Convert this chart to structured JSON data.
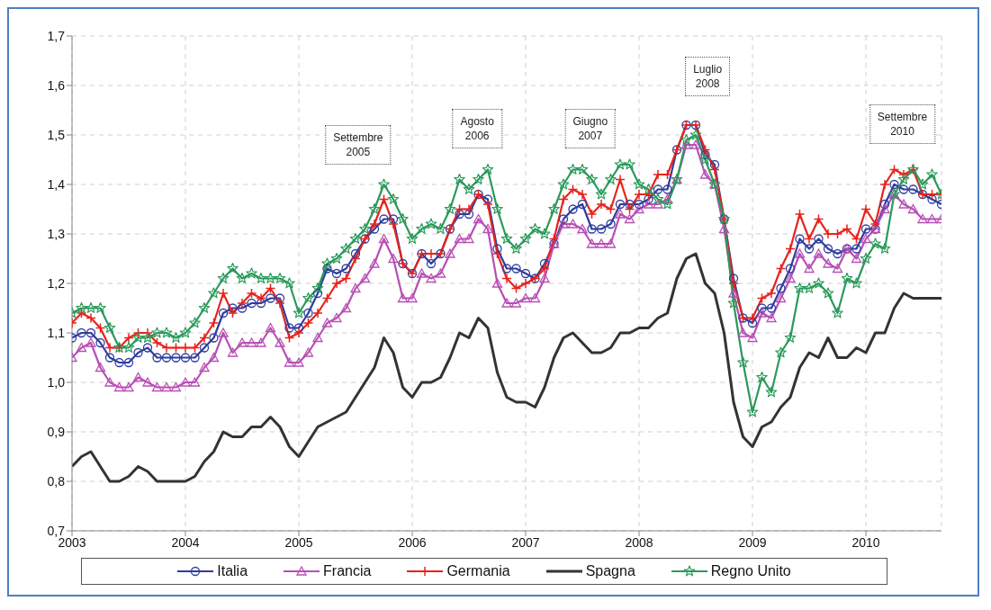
{
  "chart_data": {
    "type": "line",
    "x": [
      "2003-01",
      "2003-02",
      "2003-03",
      "2003-04",
      "2003-05",
      "2003-06",
      "2003-07",
      "2003-08",
      "2003-09",
      "2003-10",
      "2003-11",
      "2003-12",
      "2004-01",
      "2004-02",
      "2004-03",
      "2004-04",
      "2004-05",
      "2004-06",
      "2004-07",
      "2004-08",
      "2004-09",
      "2004-10",
      "2004-11",
      "2004-12",
      "2005-01",
      "2005-02",
      "2005-03",
      "2005-04",
      "2005-05",
      "2005-06",
      "2005-07",
      "2005-08",
      "2005-09",
      "2005-10",
      "2005-11",
      "2005-12",
      "2006-01",
      "2006-02",
      "2006-03",
      "2006-04",
      "2006-05",
      "2006-06",
      "2006-07",
      "2006-08",
      "2006-09",
      "2006-10",
      "2006-11",
      "2006-12",
      "2007-01",
      "2007-02",
      "2007-03",
      "2007-04",
      "2007-05",
      "2007-06",
      "2007-07",
      "2007-08",
      "2007-09",
      "2007-10",
      "2007-11",
      "2007-12",
      "2008-01",
      "2008-02",
      "2008-03",
      "2008-04",
      "2008-05",
      "2008-06",
      "2008-07",
      "2008-08",
      "2008-09",
      "2008-10",
      "2008-11",
      "2008-12",
      "2009-01",
      "2009-02",
      "2009-03",
      "2009-04",
      "2009-05",
      "2009-06",
      "2009-07",
      "2009-08",
      "2009-09",
      "2009-10",
      "2009-11",
      "2009-12",
      "2010-01",
      "2010-02",
      "2010-03",
      "2010-04",
      "2010-05",
      "2010-06",
      "2010-07",
      "2010-08",
      "2010-09"
    ],
    "series": [
      {
        "name": "Italia",
        "color": "#2e3d9e",
        "marker": "circle",
        "values": [
          1.09,
          1.1,
          1.1,
          1.08,
          1.05,
          1.04,
          1.04,
          1.06,
          1.07,
          1.05,
          1.05,
          1.05,
          1.05,
          1.05,
          1.07,
          1.09,
          1.14,
          1.15,
          1.15,
          1.16,
          1.16,
          1.17,
          1.17,
          1.11,
          1.11,
          1.14,
          1.18,
          1.23,
          1.22,
          1.23,
          1.26,
          1.29,
          1.31,
          1.33,
          1.33,
          1.24,
          1.22,
          1.26,
          1.24,
          1.26,
          1.31,
          1.34,
          1.34,
          1.38,
          1.37,
          1.27,
          1.23,
          1.23,
          1.22,
          1.21,
          1.24,
          1.28,
          1.33,
          1.35,
          1.36,
          1.31,
          1.31,
          1.32,
          1.36,
          1.36,
          1.36,
          1.37,
          1.39,
          1.39,
          1.47,
          1.52,
          1.52,
          1.46,
          1.44,
          1.33,
          1.21,
          1.13,
          1.12,
          1.15,
          1.15,
          1.19,
          1.23,
          1.29,
          1.27,
          1.29,
          1.27,
          1.26,
          1.27,
          1.27,
          1.31,
          1.31,
          1.36,
          1.4,
          1.39,
          1.39,
          1.38,
          1.37,
          1.36
        ]
      },
      {
        "name": "Francia",
        "color": "#b84fb5",
        "marker": "triangle",
        "values": [
          1.05,
          1.07,
          1.08,
          1.03,
          1.0,
          0.99,
          0.99,
          1.01,
          1.0,
          0.99,
          0.99,
          0.99,
          1.0,
          1.0,
          1.03,
          1.05,
          1.1,
          1.06,
          1.08,
          1.08,
          1.08,
          1.11,
          1.08,
          1.04,
          1.04,
          1.06,
          1.09,
          1.12,
          1.13,
          1.15,
          1.19,
          1.21,
          1.24,
          1.29,
          1.25,
          1.17,
          1.17,
          1.22,
          1.21,
          1.22,
          1.26,
          1.29,
          1.29,
          1.33,
          1.31,
          1.2,
          1.16,
          1.16,
          1.17,
          1.17,
          1.21,
          1.28,
          1.32,
          1.32,
          1.31,
          1.28,
          1.28,
          1.28,
          1.34,
          1.33,
          1.35,
          1.36,
          1.36,
          1.37,
          1.41,
          1.48,
          1.48,
          1.42,
          1.4,
          1.31,
          1.18,
          1.1,
          1.09,
          1.14,
          1.13,
          1.17,
          1.21,
          1.26,
          1.23,
          1.26,
          1.24,
          1.23,
          1.27,
          1.25,
          1.29,
          1.31,
          1.35,
          1.38,
          1.36,
          1.35,
          1.33,
          1.33,
          1.33
        ]
      },
      {
        "name": "Germania",
        "color": "#e8231c",
        "marker": "cross",
        "values": [
          1.12,
          1.14,
          1.13,
          1.11,
          1.07,
          1.07,
          1.09,
          1.1,
          1.1,
          1.08,
          1.07,
          1.07,
          1.07,
          1.07,
          1.09,
          1.12,
          1.18,
          1.14,
          1.16,
          1.18,
          1.17,
          1.19,
          1.16,
          1.09,
          1.1,
          1.12,
          1.14,
          1.17,
          1.2,
          1.21,
          1.25,
          1.29,
          1.32,
          1.37,
          1.32,
          1.24,
          1.22,
          1.26,
          1.26,
          1.26,
          1.31,
          1.35,
          1.35,
          1.38,
          1.36,
          1.26,
          1.21,
          1.19,
          1.2,
          1.21,
          1.23,
          1.29,
          1.37,
          1.39,
          1.38,
          1.34,
          1.36,
          1.35,
          1.41,
          1.35,
          1.38,
          1.38,
          1.42,
          1.42,
          1.47,
          1.52,
          1.52,
          1.47,
          1.43,
          1.33,
          1.2,
          1.13,
          1.13,
          1.17,
          1.18,
          1.23,
          1.27,
          1.34,
          1.29,
          1.33,
          1.3,
          1.3,
          1.31,
          1.29,
          1.35,
          1.32,
          1.4,
          1.43,
          1.42,
          1.43,
          1.38,
          1.38,
          1.38
        ]
      },
      {
        "name": "Spagna",
        "color": "#333333",
        "marker": "none",
        "values": [
          0.83,
          0.85,
          0.86,
          0.83,
          0.8,
          0.8,
          0.81,
          0.83,
          0.82,
          0.8,
          0.8,
          0.8,
          0.8,
          0.81,
          0.84,
          0.86,
          0.9,
          0.89,
          0.89,
          0.91,
          0.91,
          0.93,
          0.91,
          0.87,
          0.85,
          0.88,
          0.91,
          0.92,
          0.93,
          0.94,
          0.97,
          1.0,
          1.03,
          1.09,
          1.06,
          0.99,
          0.97,
          1.0,
          1.0,
          1.01,
          1.05,
          1.1,
          1.09,
          1.13,
          1.11,
          1.02,
          0.97,
          0.96,
          0.96,
          0.95,
          0.99,
          1.05,
          1.09,
          1.1,
          1.08,
          1.06,
          1.06,
          1.07,
          1.1,
          1.1,
          1.11,
          1.11,
          1.13,
          1.14,
          1.21,
          1.25,
          1.26,
          1.2,
          1.18,
          1.1,
          0.96,
          0.89,
          0.87,
          0.91,
          0.92,
          0.95,
          0.97,
          1.03,
          1.06,
          1.05,
          1.09,
          1.05,
          1.05,
          1.07,
          1.06,
          1.1,
          1.1,
          1.15,
          1.18,
          1.17,
          1.17,
          1.17,
          1.17
        ]
      },
      {
        "name": "Regno Unito",
        "color": "#2a9a5a",
        "marker": "star",
        "values": [
          1.14,
          1.15,
          1.15,
          1.15,
          1.11,
          1.07,
          1.07,
          1.09,
          1.09,
          1.1,
          1.1,
          1.09,
          1.1,
          1.12,
          1.15,
          1.18,
          1.21,
          1.23,
          1.21,
          1.22,
          1.21,
          1.21,
          1.21,
          1.2,
          1.14,
          1.17,
          1.19,
          1.24,
          1.25,
          1.27,
          1.29,
          1.31,
          1.35,
          1.4,
          1.37,
          1.33,
          1.29,
          1.31,
          1.32,
          1.31,
          1.35,
          1.41,
          1.39,
          1.41,
          1.43,
          1.35,
          1.29,
          1.27,
          1.29,
          1.31,
          1.3,
          1.35,
          1.4,
          1.43,
          1.43,
          1.41,
          1.38,
          1.41,
          1.44,
          1.44,
          1.4,
          1.39,
          1.37,
          1.36,
          1.41,
          1.49,
          1.5,
          1.45,
          1.4,
          1.33,
          1.16,
          1.04,
          0.94,
          1.01,
          0.98,
          1.06,
          1.09,
          1.19,
          1.19,
          1.2,
          1.18,
          1.14,
          1.21,
          1.2,
          1.25,
          1.28,
          1.27,
          1.38,
          1.41,
          1.43,
          1.4,
          1.42,
          1.38
        ]
      }
    ],
    "xlim": [
      "2003-01",
      "2010-09"
    ],
    "xticks": [
      "2003",
      "2004",
      "2005",
      "2006",
      "2007",
      "2008",
      "2009",
      "2010"
    ],
    "ylim": [
      0.7,
      1.7
    ],
    "yticks": [
      {
        "value": 0.7,
        "label": "0,7"
      },
      {
        "value": 0.8,
        "label": "0,8"
      },
      {
        "value": 0.9,
        "label": "0,9"
      },
      {
        "value": 1.0,
        "label": "1,0"
      },
      {
        "value": 1.1,
        "label": "1,1"
      },
      {
        "value": 1.2,
        "label": "1,2"
      },
      {
        "value": 1.3,
        "label": "1,3"
      },
      {
        "value": 1.4,
        "label": "1,4"
      },
      {
        "value": 1.5,
        "label": "1,5"
      },
      {
        "value": 1.6,
        "label": "1,6"
      },
      {
        "value": 1.7,
        "label": "1,7"
      }
    ],
    "annotations": [
      "Settembre 2005",
      "Agosto 2006",
      "Giugno 2007",
      "Luglio 2008",
      "Settembre 2010"
    ],
    "grid": true,
    "legend": "bottom"
  }
}
